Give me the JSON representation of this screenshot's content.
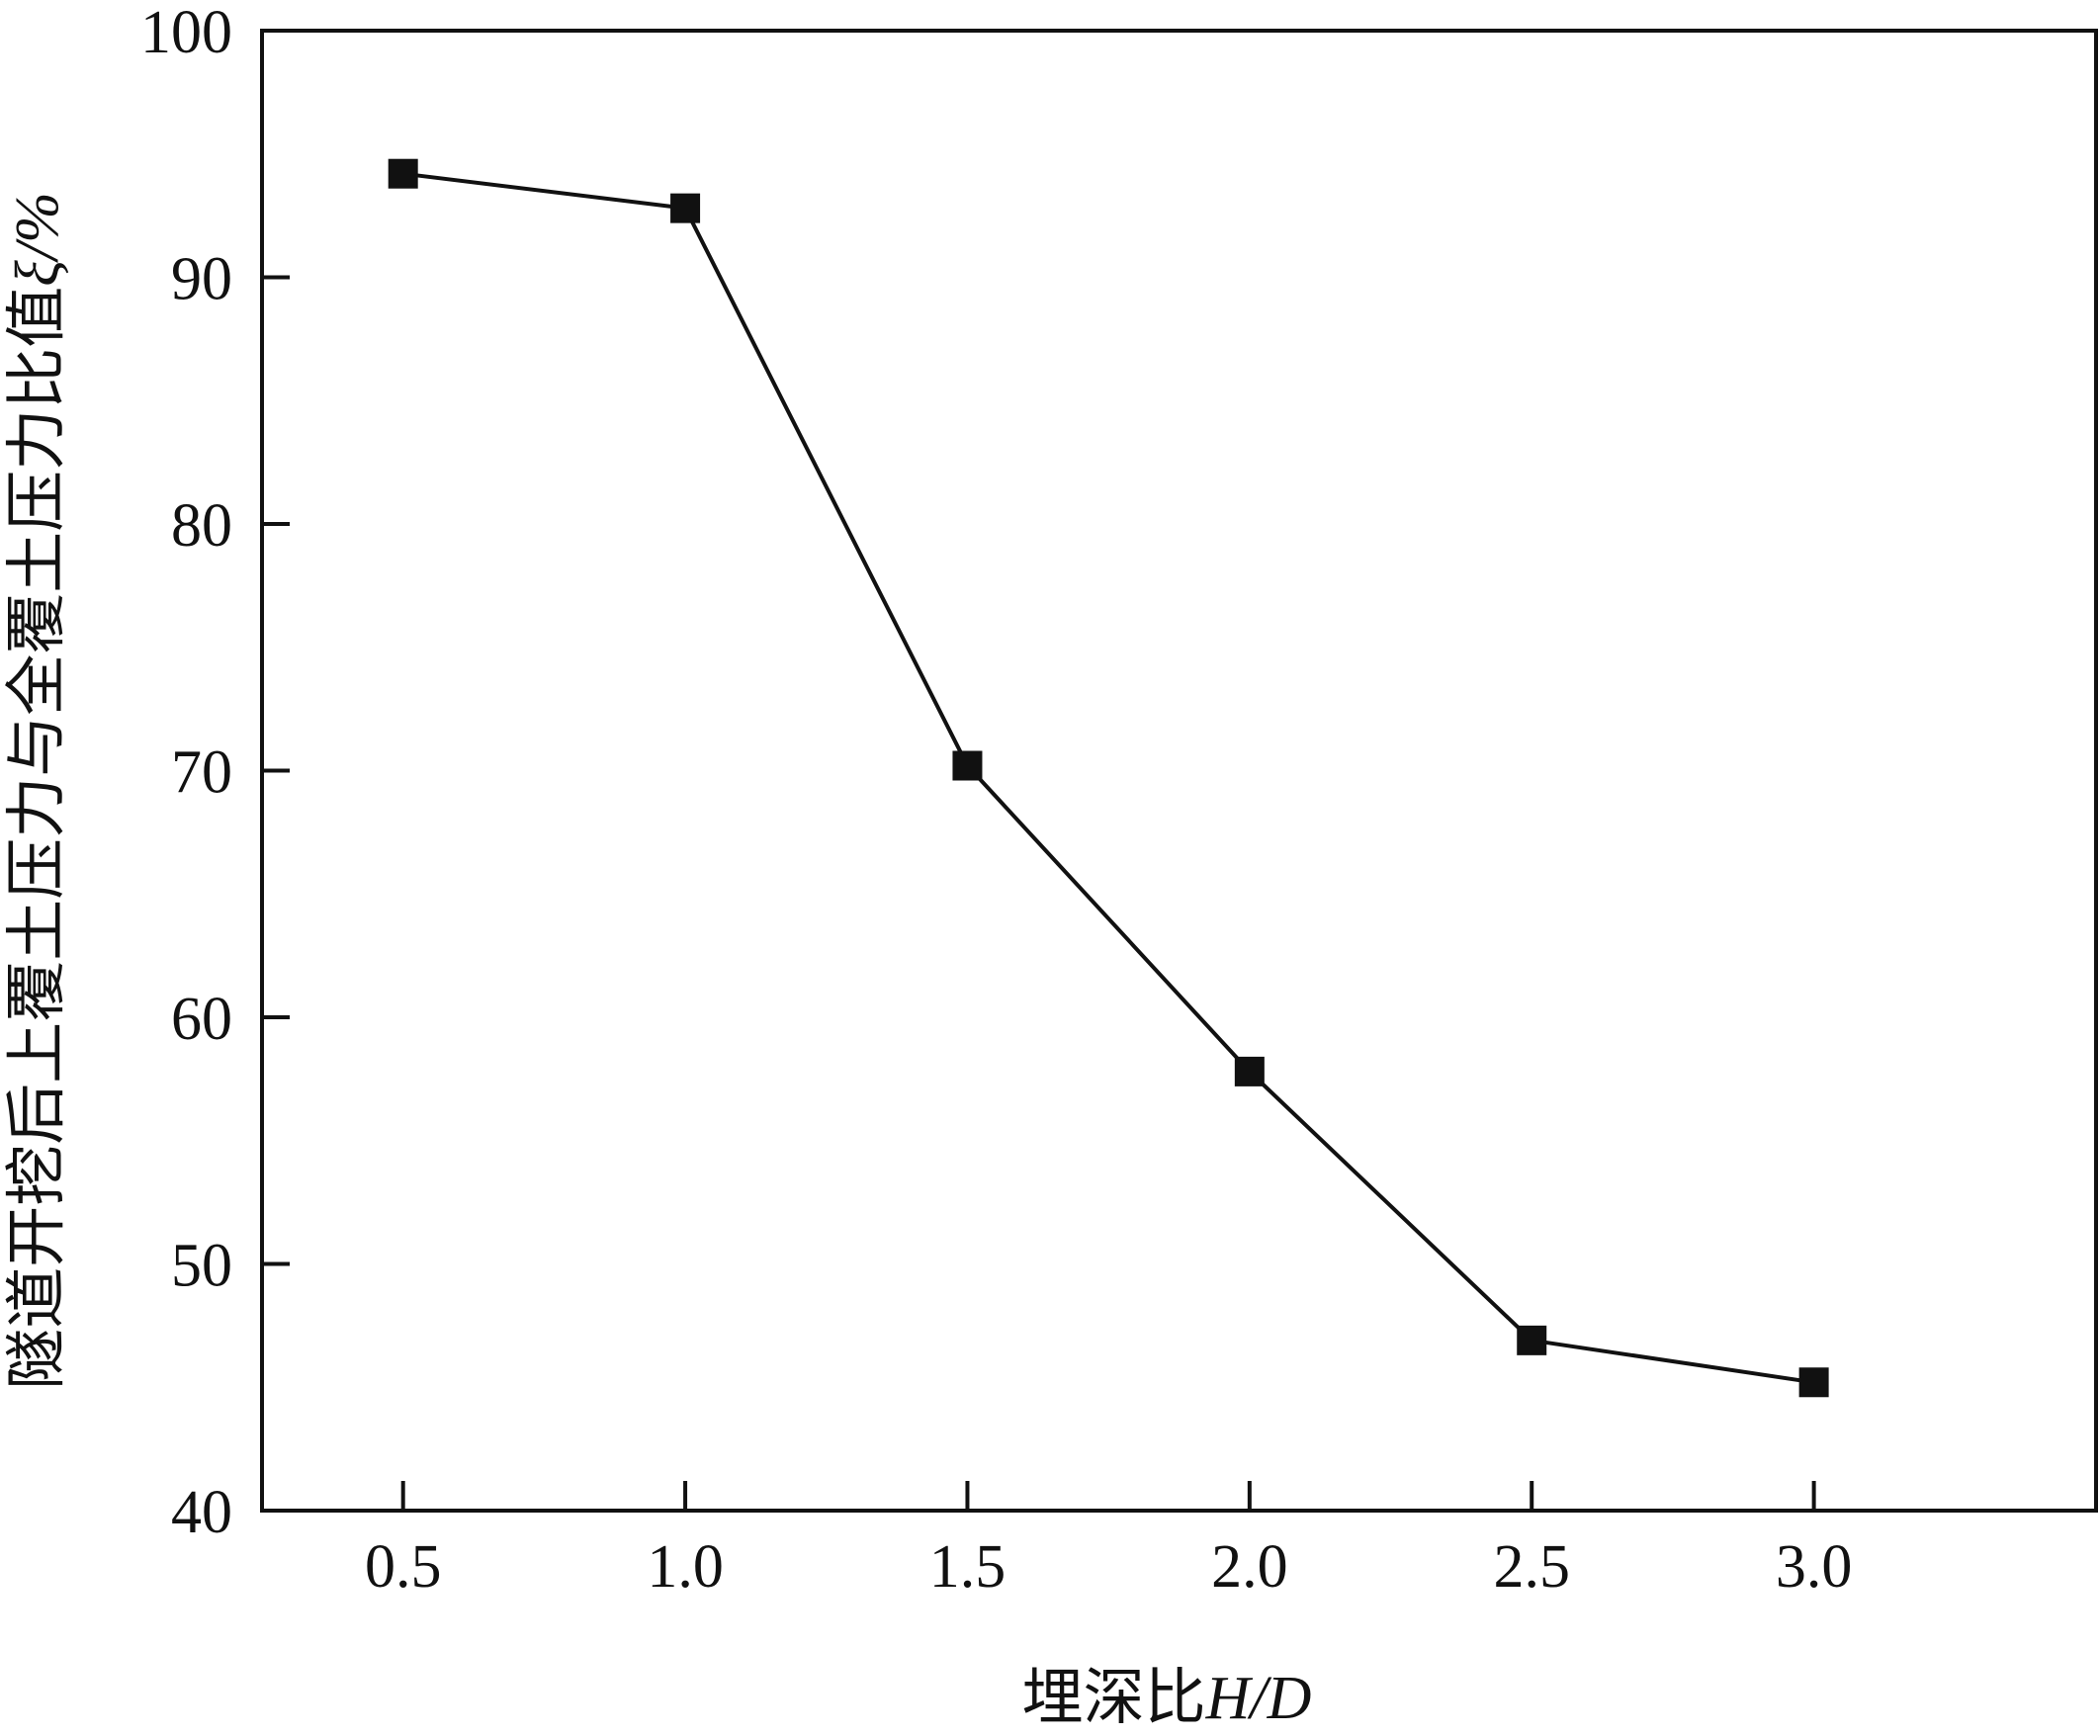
{
  "chart_data": {
    "type": "line",
    "title": "",
    "xlabel": {
      "prefix": "埋深比",
      "var": "H/D"
    },
    "ylabel": {
      "prefix": "隧道开挖后上覆土压力与全覆土压力比值",
      "var": "ξ/%"
    },
    "xlim": [
      0.25,
      3.5
    ],
    "ylim": [
      40,
      100
    ],
    "xticks": [
      "0.5",
      "1.0",
      "1.5",
      "2.0",
      "2.5",
      "3.0"
    ],
    "xtick_values": [
      0.5,
      1.0,
      1.5,
      2.0,
      2.5,
      3.0
    ],
    "yticks": [
      40,
      50,
      60,
      70,
      80,
      90,
      100
    ],
    "grid": false,
    "marker": "square",
    "series": [
      {
        "x": [
          0.5,
          1.0,
          1.5,
          2.0,
          2.5,
          3.0
        ],
        "values": [
          94.2,
          92.8,
          70.2,
          57.8,
          46.9,
          45.2
        ],
        "color": "#111111"
      }
    ]
  }
}
